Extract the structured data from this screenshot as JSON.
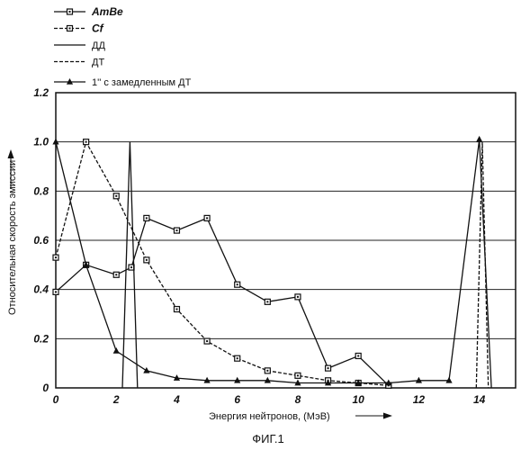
{
  "chart_data": {
    "type": "line",
    "title": "",
    "xlabel": "Энергия нейтронов, (МэВ)",
    "ylabel": "Относительная скорость эмиссии",
    "caption": "ФИГ.1",
    "xlim": [
      0,
      15.2
    ],
    "ylim": [
      0,
      1.2
    ],
    "x_ticks": [
      0,
      2,
      4,
      6,
      8,
      10,
      12,
      14
    ],
    "y_ticks": [
      0,
      0.2,
      0.4,
      0.6,
      0.8,
      1.0,
      1.2
    ],
    "x_tick_labels": [
      "0",
      "2",
      "4",
      "6",
      "8",
      "10",
      "12",
      "14"
    ],
    "y_tick_labels": [
      "0",
      "0.2",
      "0.4",
      "0.6",
      "0.8",
      "1.0",
      "1.2"
    ],
    "grid": "horizontal",
    "legend_position": "top-left",
    "series": [
      {
        "name": "AmBe",
        "style": "solid",
        "marker": "square",
        "x": [
          0,
          1,
          2,
          2.5,
          3,
          4,
          5,
          6,
          7,
          8,
          9,
          10,
          11
        ],
        "y": [
          0.39,
          0.5,
          0.46,
          0.49,
          0.69,
          0.64,
          0.69,
          0.42,
          0.35,
          0.37,
          0.08,
          0.13,
          0.01
        ]
      },
      {
        "name": "Cf",
        "style": "dashed",
        "marker": "square",
        "x": [
          0,
          1,
          2,
          3,
          4,
          5,
          6,
          7,
          8,
          9,
          10,
          11
        ],
        "y": [
          0.53,
          1.0,
          0.78,
          0.52,
          0.32,
          0.19,
          0.12,
          0.07,
          0.05,
          0.03,
          0.02,
          0.01
        ]
      },
      {
        "name": "ДД",
        "style": "solid",
        "marker": "none",
        "x": [
          2.2,
          2.45,
          2.7
        ],
        "y": [
          0,
          1.0,
          0
        ]
      },
      {
        "name": "ДТ",
        "style": "dashed",
        "marker": "none",
        "x": [
          13.9,
          14.1,
          14.3
        ],
        "y": [
          0,
          1.0,
          0
        ]
      },
      {
        "name": "1'' с замедленным ДТ",
        "style": "solid",
        "marker": "triangle",
        "x": [
          0,
          1,
          2,
          3,
          4,
          5,
          6,
          7,
          8,
          9,
          10,
          11,
          12,
          13,
          14,
          14.4
        ],
        "y": [
          1.0,
          0.5,
          0.15,
          0.07,
          0.04,
          0.03,
          0.03,
          0.03,
          0.02,
          0.02,
          0.02,
          0.02,
          0.03,
          0.03,
          1.01,
          0
        ]
      }
    ]
  }
}
